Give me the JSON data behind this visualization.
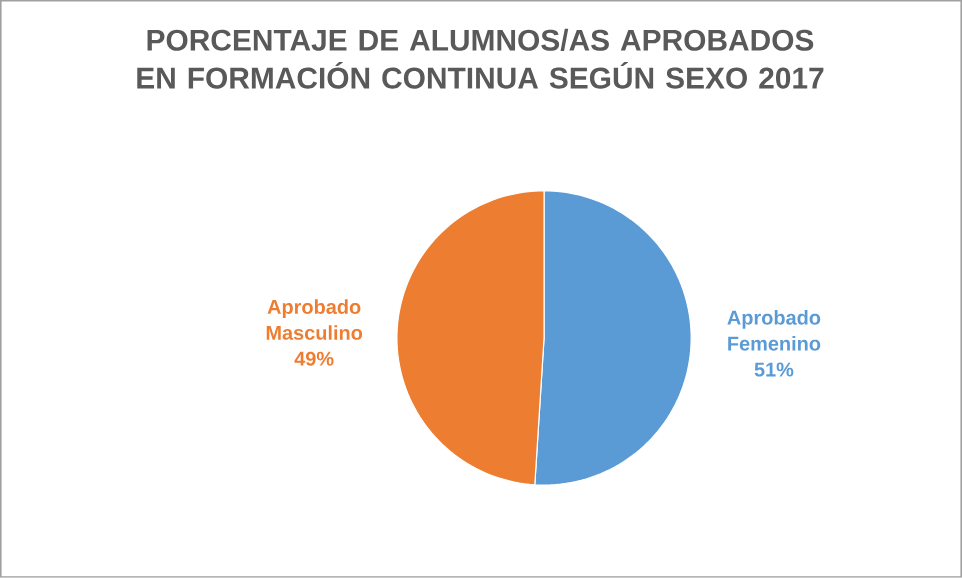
{
  "chart_data": {
    "type": "pie",
    "title": "PORCENTAJE DE ALUMNOS/AS APROBADOS EN FORMACIÓN CONTINUA SEGÚN SEXO 2017",
    "categories": [
      "Aprobado Femenino",
      "Aprobado Masculino"
    ],
    "values": [
      51,
      49
    ],
    "value_labels": [
      "51%",
      "49%"
    ],
    "colors": [
      "#5b9bd5",
      "#ed7d31"
    ]
  }
}
